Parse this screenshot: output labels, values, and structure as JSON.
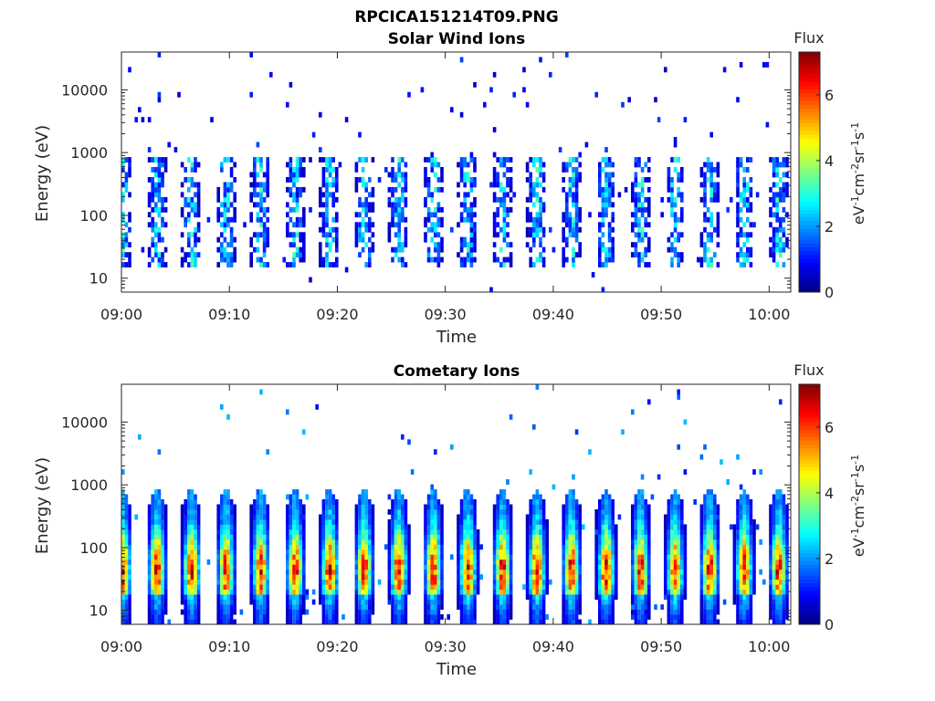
{
  "figure": {
    "filename_title": "RPCICA151214T09.PNG"
  },
  "chart_data": [
    {
      "type": "heatmap",
      "title": "Solar Wind Ions",
      "xlabel": "Time",
      "ylabel": "Energy (eV)",
      "y_scale": "log",
      "ylim": [
        6,
        40000
      ],
      "x_range": [
        "09:00",
        "10:02"
      ],
      "x_ticks": [
        "09:00",
        "09:10",
        "09:20",
        "09:30",
        "09:40",
        "09:50",
        "10:00"
      ],
      "y_ticks": [
        "10",
        "100",
        "1000",
        "10000"
      ],
      "y_tick_values": [
        10,
        100,
        1000,
        10000
      ],
      "colorbar": {
        "title": "Flux",
        "label_prefix": "eV",
        "label_mid": "cm",
        "label_mid2": "sr",
        "label_end": "s",
        "exp": "-1",
        "exp2": "-2",
        "ticks": [
          "0",
          "2",
          "4",
          "6"
        ],
        "tick_values": [
          0,
          2,
          4,
          6
        ],
        "range": [
          0,
          7.3
        ]
      },
      "scan_period_min": 3.2,
      "first_scan_min": 1.5,
      "peak_flux_estimate": 3.5
    },
    {
      "type": "heatmap",
      "title": "Cometary Ions",
      "xlabel": "Time",
      "ylabel": "Energy (eV)",
      "y_scale": "log",
      "ylim": [
        6,
        40000
      ],
      "x_range": [
        "09:00",
        "10:02"
      ],
      "x_ticks": [
        "09:00",
        "09:10",
        "09:20",
        "09:30",
        "09:40",
        "09:50",
        "10:00"
      ],
      "y_ticks": [
        "10",
        "100",
        "1000",
        "10000"
      ],
      "y_tick_values": [
        10,
        100,
        1000,
        10000
      ],
      "colorbar": {
        "title": "Flux",
        "label_prefix": "eV",
        "label_mid": "cm",
        "label_mid2": "sr",
        "label_end": "s",
        "exp": "-1",
        "exp2": "-2",
        "ticks": [
          "0",
          "2",
          "4",
          "6"
        ],
        "tick_values": [
          0,
          2,
          4,
          6
        ],
        "range": [
          0,
          7.3
        ]
      },
      "scan_period_min": 3.2,
      "first_scan_min": 1.5,
      "peak_flux_estimate": 6.2
    }
  ]
}
